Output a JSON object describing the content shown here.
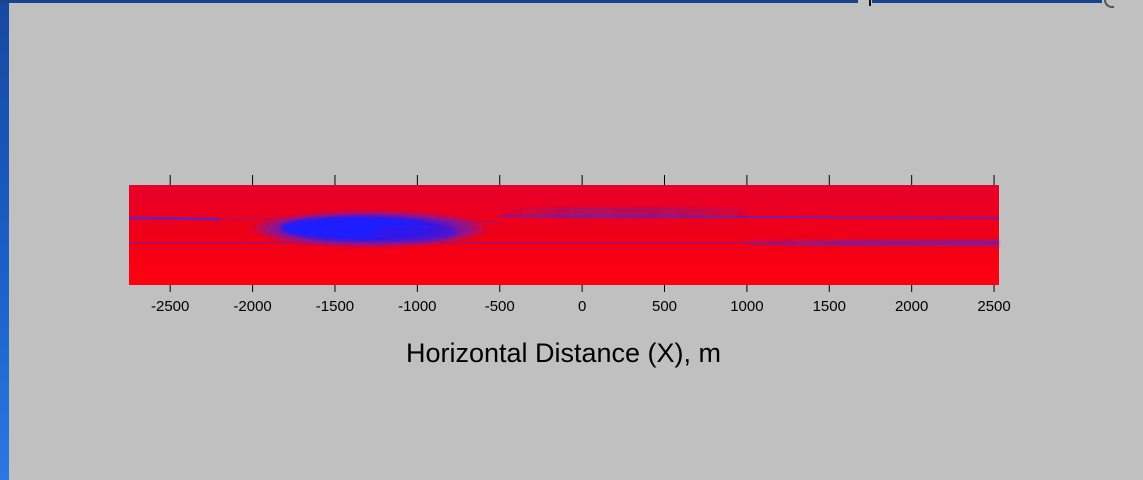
{
  "slide": {
    "background": "#c0c0c0",
    "accent": "#1a5fc8"
  },
  "chart_data": {
    "type": "heatmap",
    "xlabel": "Horizontal Distance (X), m",
    "xlim": [
      -2750,
      2530
    ],
    "tick_values": [
      -2500,
      -2000,
      -1500,
      -1000,
      -500,
      0,
      500,
      1000,
      1500,
      2000,
      2500
    ],
    "tick_labels": [
      "-2500",
      "-2000",
      "-1500",
      "-1000",
      "-500",
      "0",
      "500",
      "1000",
      "1500",
      "2000",
      "2500"
    ],
    "colors": {
      "background_field": "#ee0020",
      "feature": "#1a1aff",
      "layer_line": "#5a22c8"
    },
    "features": [
      {
        "name": "upper-layer",
        "x_start": -2750,
        "x_end": 2530,
        "y_frac": 0.33,
        "x_fade_start": -2200,
        "x_fade_end": -500
      },
      {
        "name": "lower-layer",
        "x_start": -2750,
        "x_end": 2530,
        "y_frac": 0.58
      },
      {
        "name": "main-lens",
        "x_center": -1350,
        "x_half_width": 750,
        "y_frac": 0.44,
        "intensity": 1.0
      },
      {
        "name": "right-upper-band",
        "x_start": -500,
        "x_end": 1000,
        "y_frac": 0.27,
        "intensity": 0.5
      },
      {
        "name": "right-lower-band",
        "x_start": 1000,
        "x_end": 2530,
        "y_frac": 0.58,
        "intensity": 0.45
      }
    ]
  }
}
